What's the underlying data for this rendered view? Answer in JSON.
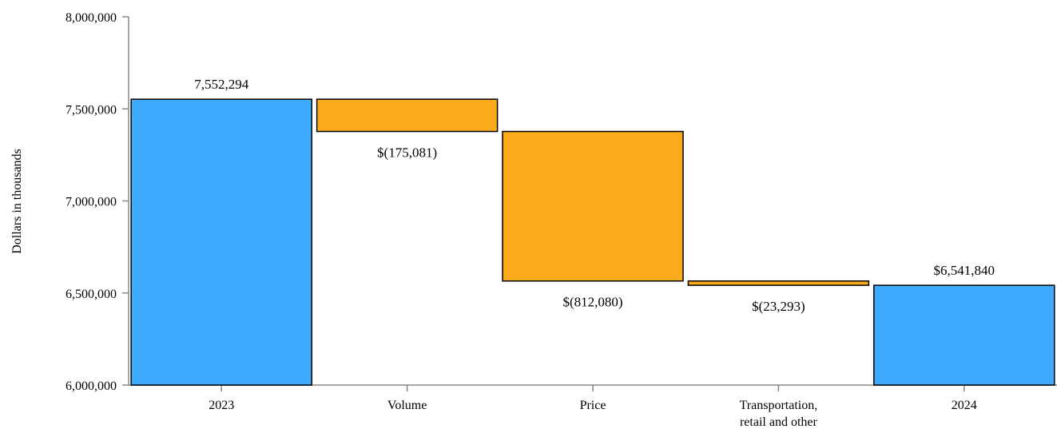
{
  "chart_data": {
    "type": "bar",
    "subtype": "waterfall",
    "ylabel": "Dollars in thousands",
    "ylim": [
      6000000,
      8000000
    ],
    "yticks": [
      6000000,
      6500000,
      7000000,
      7500000,
      8000000
    ],
    "ytick_labels": [
      "6,000,000",
      "6,500,000",
      "7,000,000",
      "7,500,000",
      "8,000,000"
    ],
    "grid": false,
    "categories": [
      {
        "label_lines": [
          "2023"
        ],
        "kind": "total",
        "start": 6000000,
        "end": 7552294,
        "label": "7,552,294",
        "label_pos": "above"
      },
      {
        "label_lines": [
          "Volume"
        ],
        "kind": "decrease",
        "start": 7552294,
        "end": 7377213,
        "label": "$(175,081)",
        "label_pos": "below"
      },
      {
        "label_lines": [
          "Price"
        ],
        "kind": "decrease",
        "start": 7377213,
        "end": 6565133,
        "label": "$(812,080)",
        "label_pos": "below"
      },
      {
        "label_lines": [
          "Transportation,",
          "retail and other"
        ],
        "kind": "decrease",
        "start": 6565133,
        "end": 6541840,
        "label": "$(23,293)",
        "label_pos": "below"
      },
      {
        "label_lines": [
          "2024"
        ],
        "kind": "total",
        "start": 6000000,
        "end": 6541840,
        "label": "$6,541,840",
        "label_pos": "above"
      }
    ],
    "colors": {
      "total": "#3fabff",
      "decrease": "#f9ab1b",
      "edge": "#000000",
      "axis": "#888888"
    }
  }
}
